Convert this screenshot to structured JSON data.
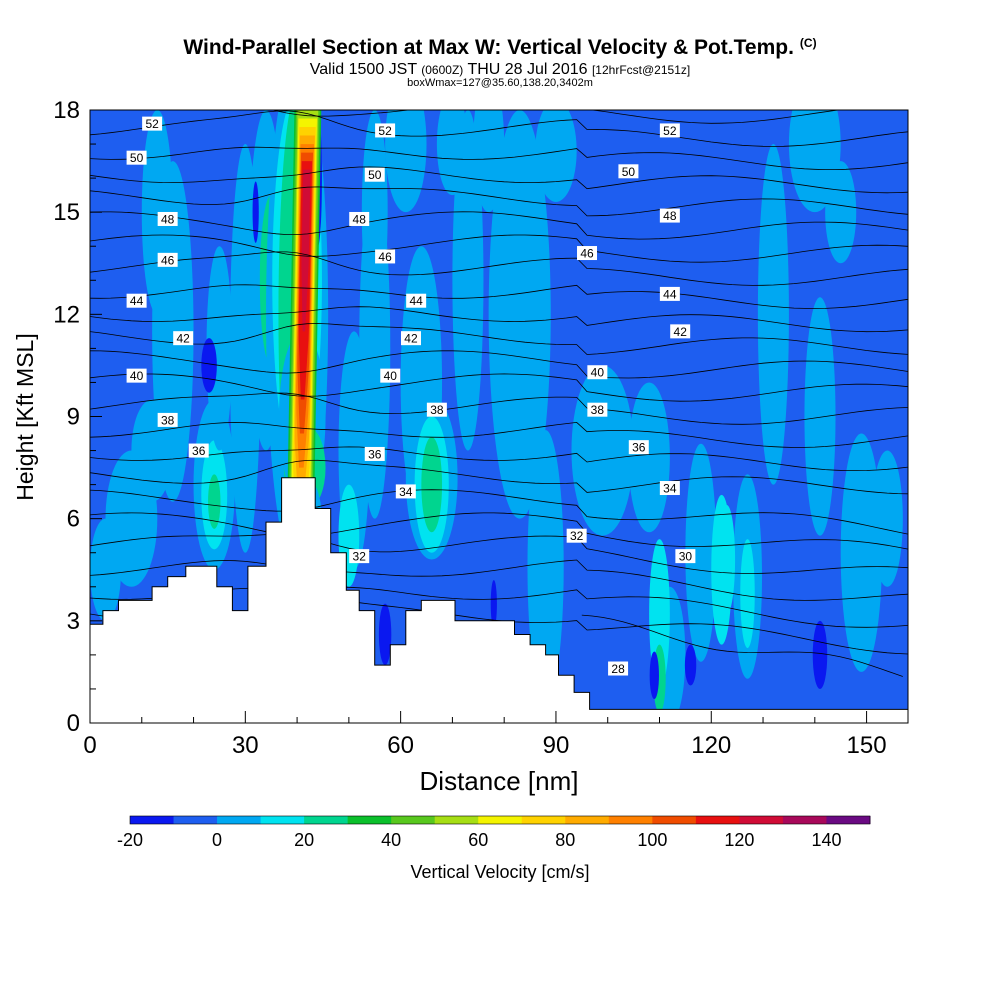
{
  "chart_data": {
    "type": "heatmap",
    "title": "Wind-Parallel Section at Max W: Vertical Velocity & Pot.Temp.",
    "title_mark": "(C)",
    "subtitle": "Valid 1500 JST",
    "subtitle_utc": "(0600Z)",
    "subtitle_date": "THU 28 Jul 2016",
    "subtitle_fcst": "[12hrFcst@2151z]",
    "subtitle2": "boxWmax=127@35.60,138.20,3402m",
    "xlabel": "Distance [nm]",
    "ylabel": "Height [Kft MSL]",
    "xlim": [
      0,
      158
    ],
    "ylim": [
      0,
      18
    ],
    "x_ticks": [
      0,
      30,
      60,
      90,
      120,
      150
    ],
    "y_ticks": [
      0,
      3,
      6,
      9,
      12,
      15,
      18
    ],
    "colorbar": {
      "label": "Vertical Velocity [cm/s]",
      "tick_labels": [
        "-20",
        "0",
        "20",
        "40",
        "60",
        "80",
        "100",
        "120",
        "140"
      ],
      "tick_values": [
        -20,
        0,
        20,
        40,
        60,
        80,
        100,
        120,
        140
      ],
      "range": [
        -20,
        150
      ],
      "colors": [
        "#0a18f0",
        "#1e5ef0",
        "#00a8f2",
        "#00e3f0",
        "#00d58f",
        "#0cc02c",
        "#58c81e",
        "#a6de14",
        "#f4f400",
        "#ffd200",
        "#ffab00",
        "#ff8000",
        "#f04c00",
        "#e81010",
        "#d00c36",
        "#a8085a",
        "#6a0a82"
      ]
    },
    "terrain_profile": [
      [
        0,
        2.9
      ],
      [
        2.5,
        2.9
      ],
      [
        2.5,
        3.3
      ],
      [
        5.5,
        3.3
      ],
      [
        5.5,
        3.6
      ],
      [
        12,
        3.6
      ],
      [
        12,
        4
      ],
      [
        15,
        4
      ],
      [
        15,
        4.3
      ],
      [
        18.5,
        4.3
      ],
      [
        18.5,
        4.6
      ],
      [
        24.5,
        4.6
      ],
      [
        24.5,
        4
      ],
      [
        27.5,
        4
      ],
      [
        27.5,
        3.3
      ],
      [
        30.5,
        3.3
      ],
      [
        30.5,
        4.6
      ],
      [
        34,
        4.6
      ],
      [
        34,
        5.9
      ],
      [
        37,
        5.9
      ],
      [
        37,
        7.2
      ],
      [
        43.5,
        7.2
      ],
      [
        43.5,
        6.3
      ],
      [
        46.5,
        6.3
      ],
      [
        46.5,
        5
      ],
      [
        49.5,
        5
      ],
      [
        49.5,
        3.9
      ],
      [
        52,
        3.9
      ],
      [
        52,
        3.3
      ],
      [
        55,
        3.3
      ],
      [
        55,
        1.7
      ],
      [
        58,
        1.7
      ],
      [
        58,
        2.3
      ],
      [
        61,
        2.3
      ],
      [
        61,
        3.3
      ],
      [
        64,
        3.3
      ],
      [
        64,
        3.6
      ],
      [
        70.5,
        3.6
      ],
      [
        70.5,
        3.0
      ],
      [
        82,
        3.0
      ],
      [
        82,
        2.6
      ],
      [
        85,
        2.6
      ],
      [
        85,
        2.3
      ],
      [
        88,
        2.3
      ],
      [
        88,
        2.0
      ],
      [
        90.5,
        2.0
      ],
      [
        90.5,
        1.4
      ],
      [
        93.5,
        1.4
      ],
      [
        93.5,
        0.9
      ],
      [
        96.5,
        0.9
      ],
      [
        96.5,
        0.4
      ],
      [
        158,
        0.4
      ]
    ],
    "updraft_core": {
      "x": 41,
      "w_max": 127
    },
    "theta_labels": [
      {
        "v": "52",
        "x": 12,
        "y": 17.6
      },
      {
        "v": "50",
        "x": 9,
        "y": 16.6
      },
      {
        "v": "48",
        "x": 15,
        "y": 14.8
      },
      {
        "v": "46",
        "x": 15,
        "y": 13.6
      },
      {
        "v": "44",
        "x": 9,
        "y": 12.4
      },
      {
        "v": "42",
        "x": 18,
        "y": 11.3
      },
      {
        "v": "40",
        "x": 9,
        "y": 10.2
      },
      {
        "v": "38",
        "x": 15,
        "y": 8.9
      },
      {
        "v": "36",
        "x": 21,
        "y": 8.0
      },
      {
        "v": "52",
        "x": 57,
        "y": 17.4
      },
      {
        "v": "50",
        "x": 55,
        "y": 16.1
      },
      {
        "v": "48",
        "x": 52,
        "y": 14.8
      },
      {
        "v": "46",
        "x": 57,
        "y": 13.7
      },
      {
        "v": "44",
        "x": 63,
        "y": 12.4
      },
      {
        "v": "42",
        "x": 62,
        "y": 11.3
      },
      {
        "v": "40",
        "x": 58,
        "y": 10.2
      },
      {
        "v": "38",
        "x": 67,
        "y": 9.2
      },
      {
        "v": "36",
        "x": 55,
        "y": 7.9
      },
      {
        "v": "34",
        "x": 61,
        "y": 6.8
      },
      {
        "v": "32",
        "x": 52,
        "y": 4.9
      },
      {
        "v": "52",
        "x": 112,
        "y": 17.4
      },
      {
        "v": "50",
        "x": 104,
        "y": 16.2
      },
      {
        "v": "48",
        "x": 112,
        "y": 14.9
      },
      {
        "v": "46",
        "x": 96,
        "y": 13.8
      },
      {
        "v": "44",
        "x": 112,
        "y": 12.6
      },
      {
        "v": "42",
        "x": 114,
        "y": 11.5
      },
      {
        "v": "40",
        "x": 98,
        "y": 10.3
      },
      {
        "v": "38",
        "x": 98,
        "y": 9.2
      },
      {
        "v": "36",
        "x": 106,
        "y": 8.1
      },
      {
        "v": "34",
        "x": 112,
        "y": 6.9
      },
      {
        "v": "32",
        "x": 94,
        "y": 5.5
      },
      {
        "v": "30",
        "x": 115,
        "y": 4.9
      },
      {
        "v": "28",
        "x": 102,
        "y": 1.6
      }
    ]
  }
}
